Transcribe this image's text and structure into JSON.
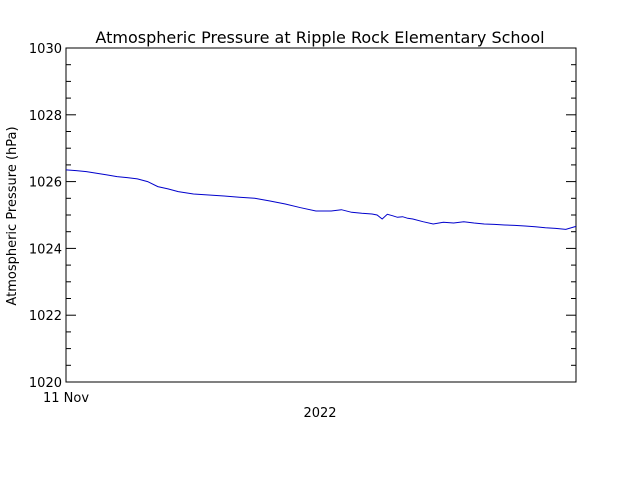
{
  "chart_data": {
    "type": "line",
    "title": "Atmospheric Pressure at Ripple Rock Elementary School",
    "ylabel": "Atmospheric Pressure (hPa)",
    "xlabel": "2022",
    "ylim": [
      1020,
      1030
    ],
    "yticks": [
      1020,
      1022,
      1024,
      1026,
      1028,
      1030
    ],
    "ytick_labels": [
      "1020",
      "1022",
      "1024",
      "1026",
      "1028",
      "1030"
    ],
    "xtick_labels": [
      "11 Nov"
    ],
    "grid": false,
    "colors": {
      "line": "#0000cc",
      "axes": "#000000",
      "background": "#ffffff"
    },
    "series": [
      {
        "x": [
          0.0,
          0.02,
          0.04,
          0.06,
          0.08,
          0.1,
          0.12,
          0.14,
          0.16,
          0.18,
          0.2,
          0.22,
          0.25,
          0.28,
          0.31,
          0.34,
          0.37,
          0.4,
          0.43,
          0.46,
          0.49,
          0.52,
          0.54,
          0.56,
          0.58,
          0.6,
          0.61,
          0.62,
          0.63,
          0.64,
          0.65,
          0.66,
          0.67,
          0.68,
          0.7,
          0.72,
          0.74,
          0.76,
          0.78,
          0.8,
          0.82,
          0.84,
          0.86,
          0.88,
          0.9,
          0.92,
          0.94,
          0.96,
          0.98,
          1.0
        ],
        "values": [
          1026.35,
          1026.33,
          1026.3,
          1026.25,
          1026.2,
          1026.15,
          1026.12,
          1026.08,
          1026.0,
          1025.85,
          1025.78,
          1025.7,
          1025.63,
          1025.6,
          1025.57,
          1025.53,
          1025.5,
          1025.42,
          1025.33,
          1025.22,
          1025.12,
          1025.12,
          1025.16,
          1025.08,
          1025.05,
          1025.03,
          1025.0,
          1024.88,
          1025.02,
          1024.98,
          1024.93,
          1024.95,
          1024.9,
          1024.88,
          1024.8,
          1024.73,
          1024.78,
          1024.76,
          1024.8,
          1024.76,
          1024.73,
          1024.72,
          1024.7,
          1024.69,
          1024.67,
          1024.65,
          1024.62,
          1024.6,
          1024.57,
          1024.66
        ]
      }
    ]
  }
}
